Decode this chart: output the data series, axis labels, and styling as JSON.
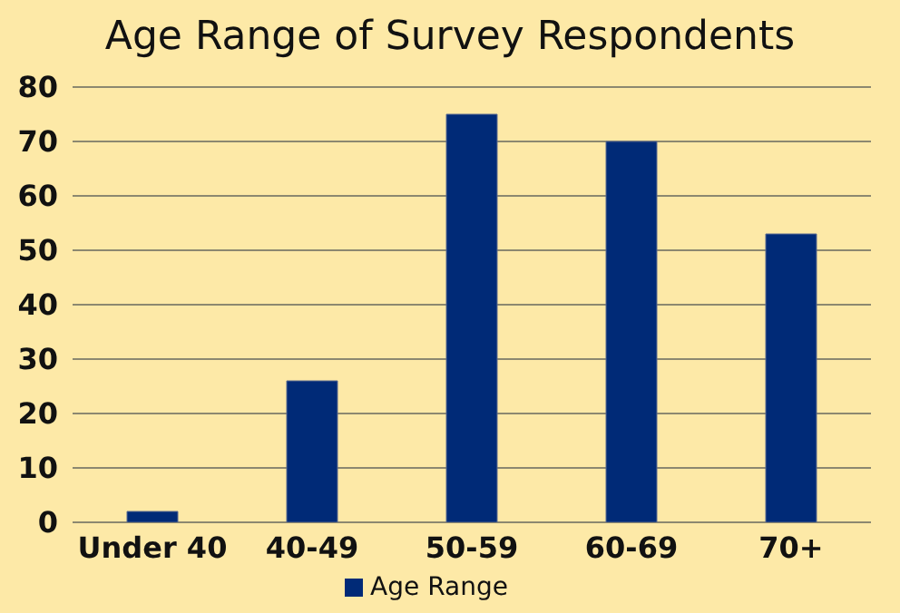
{
  "chart_data": {
    "type": "bar",
    "title": "Age Range of Survey Respondents",
    "categories": [
      "Under 40",
      "40-49",
      "50-59",
      "60-69",
      "70+"
    ],
    "series": [
      {
        "name": "Age Range",
        "color": "#002a77",
        "values": [
          2,
          26,
          75,
          70,
          53
        ]
      }
    ],
    "ylim": [
      0,
      80
    ],
    "yticks": [
      0,
      10,
      20,
      30,
      40,
      50,
      60,
      70,
      80
    ],
    "grid": "y",
    "legend": "bottom"
  }
}
